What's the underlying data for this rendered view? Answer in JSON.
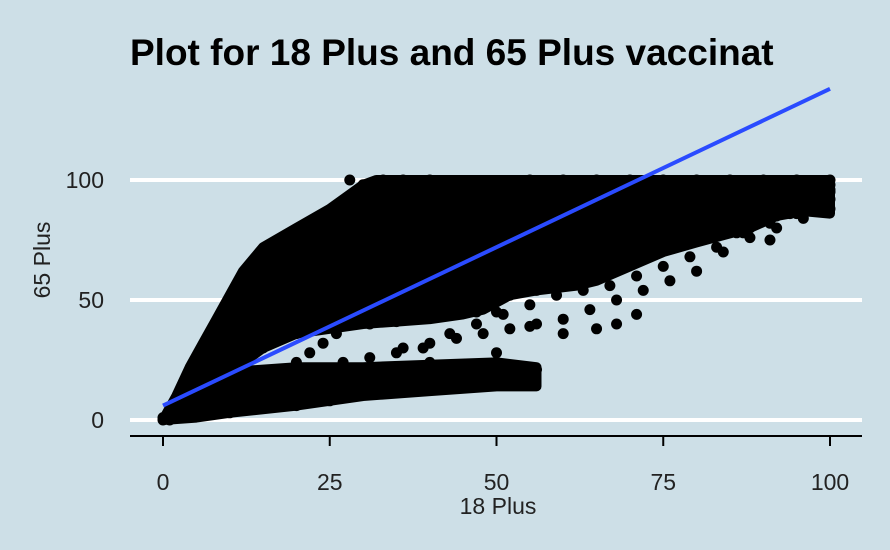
{
  "chart_data": {
    "type": "scatter",
    "title": "Plot for 18 Plus and 65 Plus vaccinat",
    "xlabel": "18 Plus",
    "ylabel": "65 Plus",
    "xlim": [
      -5,
      105
    ],
    "ylim": [
      -5,
      120
    ],
    "x_ticks": [
      0,
      25,
      50,
      75,
      100
    ],
    "y_ticks": [
      0,
      50,
      100
    ],
    "x_tick_labels": [
      "0",
      "25",
      "50",
      "75",
      "100"
    ],
    "y_tick_labels": [
      "0",
      "50",
      "100"
    ],
    "grid": "horizontal major lines only",
    "colors": {
      "background": "#cddfe7",
      "points": "#000000",
      "fit_line": "#2a4bff",
      "grid": "#ffffff"
    },
    "fit_line": {
      "x": [
        0,
        100
      ],
      "y": [
        6,
        138
      ]
    },
    "dense_region": {
      "upper_boundary": [
        [
          0,
          0
        ],
        [
          2,
          10
        ],
        [
          4,
          22
        ],
        [
          6,
          32
        ],
        [
          8,
          42
        ],
        [
          10,
          52
        ],
        [
          12,
          62
        ],
        [
          15,
          72
        ],
        [
          20,
          80
        ],
        [
          25,
          88
        ],
        [
          28,
          94
        ],
        [
          30,
          98
        ],
        [
          32,
          100
        ],
        [
          100,
          100
        ]
      ],
      "lower_boundary": [
        [
          100,
          86
        ],
        [
          96,
          87
        ],
        [
          92,
          85
        ],
        [
          88,
          80
        ],
        [
          84,
          77
        ],
        [
          80,
          74
        ],
        [
          75,
          70
        ],
        [
          70,
          64
        ],
        [
          65,
          58
        ],
        [
          62,
          56
        ],
        [
          56,
          54
        ],
        [
          52,
          52
        ],
        [
          48,
          46
        ],
        [
          45,
          44
        ],
        [
          40,
          42
        ],
        [
          35,
          41
        ],
        [
          30,
          40
        ],
        [
          25,
          38
        ],
        [
          20,
          36
        ],
        [
          15,
          30
        ],
        [
          10,
          20
        ],
        [
          5,
          10
        ],
        [
          2,
          4
        ],
        [
          0,
          0
        ]
      ]
    },
    "lower_cluster": {
      "upper_boundary": [
        [
          0,
          0
        ],
        [
          5,
          16
        ],
        [
          10,
          20
        ],
        [
          20,
          22
        ],
        [
          30,
          22
        ],
        [
          40,
          23
        ],
        [
          50,
          24
        ],
        [
          56,
          22
        ]
      ],
      "lower_boundary": [
        [
          56,
          14
        ],
        [
          50,
          14
        ],
        [
          40,
          12
        ],
        [
          30,
          10
        ],
        [
          20,
          6
        ],
        [
          10,
          3
        ],
        [
          5,
          1
        ],
        [
          0,
          0
        ]
      ]
    },
    "points": [
      [
        28,
        100
      ],
      [
        30,
        98
      ],
      [
        33,
        100
      ],
      [
        36,
        100
      ],
      [
        40,
        100
      ],
      [
        45,
        99
      ],
      [
        55,
        100
      ],
      [
        60,
        100
      ],
      [
        65,
        100
      ],
      [
        70,
        100
      ],
      [
        75,
        100
      ],
      [
        80,
        100
      ],
      [
        85,
        100
      ],
      [
        90,
        100
      ],
      [
        95,
        100
      ],
      [
        100,
        100
      ],
      [
        100,
        98
      ],
      [
        100,
        95
      ],
      [
        100,
        92
      ],
      [
        99,
        90
      ],
      [
        100,
        88
      ],
      [
        98,
        87
      ],
      [
        96,
        88
      ],
      [
        94,
        86
      ],
      [
        92,
        85
      ],
      [
        91,
        75
      ],
      [
        88,
        80
      ],
      [
        86,
        78
      ],
      [
        83,
        77
      ],
      [
        79,
        76
      ],
      [
        77,
        78
      ],
      [
        74,
        72
      ],
      [
        70,
        68
      ],
      [
        66,
        62
      ],
      [
        61,
        58
      ],
      [
        58,
        55
      ],
      [
        56,
        54
      ],
      [
        52,
        52
      ],
      [
        50,
        45
      ],
      [
        47,
        45
      ],
      [
        43,
        44
      ],
      [
        40,
        43
      ],
      [
        38,
        42
      ],
      [
        35,
        41
      ],
      [
        33,
        41
      ],
      [
        31,
        40
      ],
      [
        28,
        40
      ],
      [
        25,
        39
      ],
      [
        22,
        38
      ],
      [
        20,
        36
      ],
      [
        17,
        33
      ],
      [
        15,
        30
      ],
      [
        13,
        26
      ],
      [
        10,
        20
      ],
      [
        8,
        16
      ],
      [
        5,
        10
      ],
      [
        2,
        4
      ],
      [
        3,
        12
      ],
      [
        5,
        20
      ],
      [
        6,
        26
      ],
      [
        7,
        31
      ],
      [
        9,
        38
      ],
      [
        10,
        44
      ],
      [
        12,
        55
      ],
      [
        14,
        62
      ],
      [
        16,
        66
      ],
      [
        18,
        70
      ],
      [
        19,
        72
      ],
      [
        21,
        76
      ],
      [
        23,
        80
      ],
      [
        25,
        84
      ],
      [
        27,
        88
      ],
      [
        29,
        92
      ],
      [
        31,
        96
      ],
      [
        56,
        21
      ],
      [
        55,
        18
      ],
      [
        54,
        15
      ],
      [
        50,
        22
      ],
      [
        47,
        21
      ],
      [
        45,
        23
      ],
      [
        42,
        21
      ],
      [
        40,
        24
      ],
      [
        38,
        22
      ],
      [
        35,
        20
      ],
      [
        32,
        18
      ],
      [
        30,
        14
      ],
      [
        28,
        10
      ],
      [
        25,
        8
      ],
      [
        20,
        6
      ],
      [
        15,
        5
      ],
      [
        10,
        3
      ],
      [
        50,
        28
      ],
      [
        55,
        39
      ],
      [
        60,
        36
      ],
      [
        65,
        38
      ],
      [
        68,
        40
      ],
      [
        71,
        44
      ],
      [
        46,
        50
      ],
      [
        42,
        48
      ],
      [
        38,
        44
      ],
      [
        0,
        0
      ],
      [
        0,
        1
      ],
      [
        1,
        0
      ],
      [
        1,
        2
      ],
      [
        2,
        1
      ],
      [
        3,
        3
      ],
      [
        4,
        2
      ],
      [
        4,
        5
      ],
      [
        6,
        4
      ],
      [
        7,
        8
      ],
      [
        8,
        6
      ],
      [
        9,
        10
      ],
      [
        11,
        9
      ],
      [
        12,
        14
      ],
      [
        14,
        12
      ],
      [
        16,
        18
      ],
      [
        18,
        20
      ],
      [
        20,
        24
      ],
      [
        22,
        28
      ],
      [
        24,
        32
      ],
      [
        26,
        36
      ],
      [
        28,
        44
      ],
      [
        30,
        52
      ],
      [
        32,
        60
      ],
      [
        34,
        66
      ],
      [
        36,
        70
      ],
      [
        38,
        74
      ],
      [
        40,
        78
      ],
      [
        42,
        82
      ],
      [
        44,
        86
      ],
      [
        46,
        90
      ],
      [
        48,
        94
      ],
      [
        50,
        96
      ],
      [
        52,
        98
      ],
      [
        55,
        99
      ],
      [
        60,
        96
      ],
      [
        62,
        94
      ],
      [
        64,
        90
      ],
      [
        66,
        88
      ],
      [
        68,
        86
      ],
      [
        70,
        84
      ],
      [
        72,
        82
      ],
      [
        74,
        80
      ],
      [
        76,
        82
      ],
      [
        78,
        86
      ],
      [
        80,
        90
      ],
      [
        82,
        92
      ],
      [
        84,
        94
      ],
      [
        86,
        96
      ],
      [
        88,
        98
      ],
      [
        90,
        99
      ],
      [
        92,
        98
      ],
      [
        94,
        97
      ],
      [
        96,
        96
      ],
      [
        98,
        94
      ],
      [
        97,
        90
      ],
      [
        95,
        89
      ],
      [
        93,
        91
      ],
      [
        89,
        92
      ],
      [
        87,
        90
      ],
      [
        85,
        88
      ],
      [
        81,
        84
      ],
      [
        79,
        82
      ],
      [
        77,
        80
      ],
      [
        73,
        78
      ],
      [
        71,
        76
      ],
      [
        69,
        74
      ],
      [
        67,
        72
      ],
      [
        63,
        70
      ],
      [
        59,
        66
      ],
      [
        57,
        62
      ],
      [
        53,
        60
      ],
      [
        51,
        58
      ],
      [
        49,
        56
      ],
      [
        45,
        54
      ],
      [
        41,
        52
      ],
      [
        37,
        50
      ],
      [
        35,
        48
      ],
      [
        33,
        46
      ],
      [
        29,
        46
      ],
      [
        27,
        44
      ],
      [
        23,
        42
      ],
      [
        19,
        40
      ],
      [
        17,
        40
      ],
      [
        15,
        36
      ],
      [
        13,
        34
      ],
      [
        11,
        30
      ],
      [
        9,
        26
      ],
      [
        7,
        22
      ],
      [
        5,
        16
      ],
      [
        3,
        8
      ],
      [
        26,
        70
      ],
      [
        24,
        66
      ],
      [
        22,
        60
      ],
      [
        20,
        56
      ],
      [
        18,
        50
      ],
      [
        16,
        46
      ],
      [
        14,
        42
      ],
      [
        12,
        38
      ],
      [
        10,
        34
      ],
      [
        8,
        30
      ],
      [
        6,
        24
      ],
      [
        4,
        16
      ],
      [
        30,
        70
      ],
      [
        34,
        76
      ],
      [
        38,
        82
      ],
      [
        42,
        86
      ],
      [
        46,
        88
      ],
      [
        50,
        90
      ],
      [
        54,
        92
      ],
      [
        58,
        94
      ],
      [
        62,
        96
      ],
      [
        66,
        97
      ],
      [
        70,
        96
      ],
      [
        74,
        94
      ],
      [
        78,
        92
      ],
      [
        82,
        96
      ],
      [
        86,
        99
      ],
      [
        90,
        96
      ],
      [
        94,
        93
      ],
      [
        98,
        98
      ],
      [
        36,
        30
      ],
      [
        40,
        32
      ],
      [
        44,
        34
      ],
      [
        48,
        36
      ],
      [
        52,
        38
      ],
      [
        56,
        40
      ],
      [
        60,
        42
      ],
      [
        64,
        46
      ],
      [
        68,
        50
      ],
      [
        72,
        54
      ],
      [
        76,
        58
      ],
      [
        80,
        62
      ],
      [
        84,
        70
      ],
      [
        88,
        76
      ],
      [
        92,
        80
      ],
      [
        96,
        84
      ],
      [
        27,
        24
      ],
      [
        31,
        26
      ],
      [
        35,
        28
      ],
      [
        39,
        30
      ],
      [
        43,
        36
      ],
      [
        47,
        40
      ],
      [
        51,
        44
      ],
      [
        55,
        48
      ],
      [
        59,
        52
      ],
      [
        63,
        54
      ],
      [
        67,
        56
      ],
      [
        71,
        60
      ],
      [
        75,
        64
      ],
      [
        79,
        68
      ],
      [
        83,
        72
      ],
      [
        87,
        78
      ],
      [
        91,
        82
      ],
      [
        95,
        86
      ],
      [
        99,
        88
      ],
      [
        25,
        55
      ],
      [
        30,
        58
      ],
      [
        35,
        62
      ],
      [
        40,
        64
      ],
      [
        45,
        68
      ],
      [
        50,
        70
      ],
      [
        55,
        72
      ],
      [
        60,
        76
      ],
      [
        65,
        78
      ],
      [
        70,
        80
      ],
      [
        75,
        84
      ],
      [
        80,
        86
      ],
      [
        85,
        84
      ],
      [
        90,
        88
      ],
      [
        95,
        92
      ],
      [
        100,
        96
      ]
    ]
  }
}
